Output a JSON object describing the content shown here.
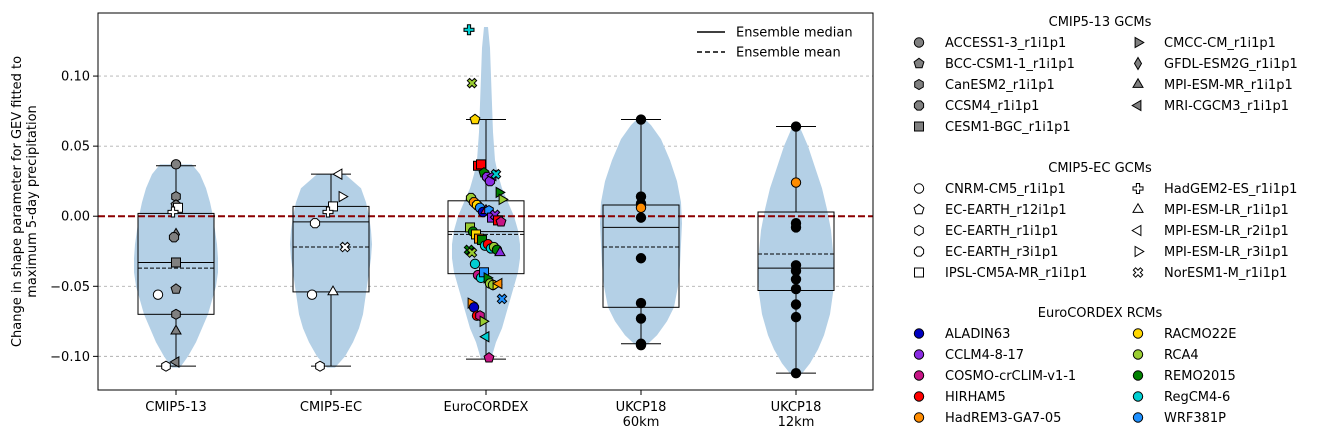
{
  "chart_data": {
    "type": "violin-box-scatter",
    "ylabel": "Change in shape parameter for GEV fitted to\nmaximum 5-day precipitation",
    "ylim": [
      -0.124,
      0.145
    ],
    "yticks": [
      -0.1,
      -0.05,
      0.0,
      0.05,
      0.1
    ],
    "ytick_labels": [
      "−0.10",
      "−0.05",
      "0.00",
      "0.05",
      "0.10"
    ],
    "grid": "horizontal dashed",
    "zero_line": {
      "value": 0,
      "color": "#8b0000"
    },
    "categories": [
      "CMIP5-13",
      "CMIP5-EC",
      "EuroCORDEX",
      "UKCP18\n60km",
      "UKCP18\n12km"
    ],
    "line_legend": [
      {
        "label": "Ensemble median",
        "style": "solid"
      },
      {
        "label": "Ensemble mean",
        "style": "dashed"
      }
    ],
    "groups": [
      {
        "category": "CMIP5-13",
        "whisker": [
          -0.107,
          0.036
        ],
        "box": [
          -0.07,
          0.002
        ],
        "median": -0.033,
        "mean": -0.037,
        "violin": [
          [
            -0.108,
            0.004
          ],
          [
            -0.1,
            0.012
          ],
          [
            -0.09,
            0.02
          ],
          [
            -0.08,
            0.026
          ],
          [
            -0.07,
            0.032
          ],
          [
            -0.06,
            0.036
          ],
          [
            -0.05,
            0.04
          ],
          [
            -0.04,
            0.042
          ],
          [
            -0.03,
            0.042
          ],
          [
            -0.02,
            0.041
          ],
          [
            -0.01,
            0.039
          ],
          [
            0.0,
            0.037
          ],
          [
            0.01,
            0.034
          ],
          [
            0.02,
            0.03
          ],
          [
            0.03,
            0.024
          ],
          [
            0.037,
            0.016
          ]
        ],
        "points": [
          {
            "m": "ACCESS1-3_r1i1p1",
            "y": 0.037
          },
          {
            "m": "CanESM2_r1i1p1",
            "y": 0.014
          },
          {
            "m": "BCC-CSM1-1_r1i1p1",
            "y": 0.008
          },
          {
            "m": "GFDL-ESM2G_r1i1p1",
            "y": -0.013
          },
          {
            "m": "CCSM4_r1i1p1",
            "y": -0.015
          },
          {
            "m": "CESM1-BGC_r1i1p1",
            "y": -0.033
          },
          {
            "m": "BCC-CSM1-1_r1i1p1",
            "y": -0.052
          },
          {
            "m": "MPI-ESM-MR_r1i1p1",
            "y": -0.082
          },
          {
            "m": "CanESM2_r1i1p1",
            "y": -0.07
          },
          {
            "m": "MRI-CGCM3_r1i1p1",
            "y": -0.104
          },
          {
            "m": "CNRM-CM5_r1i1p1",
            "y": -0.056
          },
          {
            "m": "EC-EARTH_r1i1p1",
            "y": -0.107
          },
          {
            "m": "IPSL-CM5A-MR_r1i1p1",
            "y": 0.006
          },
          {
            "m": "HadGEM2-ES_r1i1p1",
            "y": 0.003
          }
        ]
      },
      {
        "category": "CMIP5-EC",
        "whisker": [
          -0.107,
          0.03
        ],
        "box": [
          -0.054,
          0.007
        ],
        "median": -0.004,
        "mean": -0.022,
        "violin": [
          [
            -0.108,
            0.004
          ],
          [
            -0.1,
            0.014
          ],
          [
            -0.09,
            0.022
          ],
          [
            -0.08,
            0.028
          ],
          [
            -0.07,
            0.032
          ],
          [
            -0.06,
            0.034
          ],
          [
            -0.05,
            0.036
          ],
          [
            -0.04,
            0.038
          ],
          [
            -0.03,
            0.04
          ],
          [
            -0.02,
            0.041
          ],
          [
            -0.01,
            0.04
          ],
          [
            0.0,
            0.038
          ],
          [
            0.01,
            0.035
          ],
          [
            0.02,
            0.03
          ],
          [
            0.03,
            0.014
          ]
        ],
        "points": [
          {
            "m": "MPI-ESM-LR_r2i1p1",
            "y": 0.03
          },
          {
            "m": "MPI-ESM-LR_r3i1p1",
            "y": 0.014
          },
          {
            "m": "IPSL-CM5A-MR_r1i1p1",
            "y": 0.007
          },
          {
            "m": "HadGEM2-ES_r1i1p1",
            "y": 0.003
          },
          {
            "m": "EC-EARTH_r3i1p1",
            "y": -0.005
          },
          {
            "m": "NorESM1-M_r1i1p1",
            "y": -0.022
          },
          {
            "m": "CNRM-CM5_r1i1p1",
            "y": -0.056
          },
          {
            "m": "MPI-ESM-LR_r1i1p1",
            "y": -0.054
          },
          {
            "m": "EC-EARTH_r1i1p1",
            "y": -0.107
          }
        ]
      },
      {
        "category": "EuroCORDEX",
        "whisker": [
          -0.102,
          0.069
        ],
        "box": [
          -0.041,
          0.011
        ],
        "median": -0.011,
        "mean": -0.013,
        "violin": [
          [
            -0.102,
            0.005
          ],
          [
            -0.09,
            0.01
          ],
          [
            -0.08,
            0.016
          ],
          [
            -0.06,
            0.024
          ],
          [
            -0.04,
            0.032
          ],
          [
            -0.03,
            0.034
          ],
          [
            -0.02,
            0.034
          ],
          [
            -0.01,
            0.032
          ],
          [
            0.0,
            0.028
          ],
          [
            0.01,
            0.022
          ],
          [
            0.02,
            0.016
          ],
          [
            0.03,
            0.012
          ],
          [
            0.04,
            0.009
          ],
          [
            0.06,
            0.007
          ],
          [
            0.08,
            0.006
          ],
          [
            0.1,
            0.005
          ],
          [
            0.12,
            0.004
          ],
          [
            0.135,
            0.002
          ]
        ],
        "points": [
          {
            "r": "HadGEM2-ES_r1i1p1",
            "c": "RegCM4-6",
            "y": 0.133
          },
          {
            "r": "NorESM1-M_r1i1p1",
            "c": "RCA4",
            "y": 0.095
          },
          {
            "r": "EC-EARTH_r12i1p1",
            "c": "RACMO22E",
            "y": 0.069
          },
          {
            "r": "CESM1-BGC_r1i1p1",
            "c": "HIRHAM5",
            "y": 0.036
          },
          {
            "r": "IPSL-CM5A-MR_r1i1p1",
            "c": "HIRHAM5",
            "y": 0.037
          },
          {
            "r": "BCC-CSM1-1_r1i1p1",
            "c": "REMO2015",
            "y": 0.031
          },
          {
            "r": "CCSM4_r1i1p1",
            "c": "CCLM4-8-17",
            "y": 0.028
          },
          {
            "r": "CCSM4_r1i1p1",
            "c": "CCLM4-8-17",
            "y": 0.025
          },
          {
            "r": "MRI-CGCM3_r1i1p1",
            "c": "CCLM4-8-17",
            "y": 0.029
          },
          {
            "r": "NorESM1-M_r1i1p1",
            "c": "RegCM4-6",
            "y": 0.03
          },
          {
            "r": "MPI-ESM-LR_r3i1p1",
            "c": "REMO2015",
            "y": 0.017
          },
          {
            "r": "MPI-ESM-LR_r3i1p1",
            "c": "RCA4",
            "y": 0.012
          },
          {
            "r": "CCSM4_r1i1p1",
            "c": "RCA4",
            "y": 0.013
          },
          {
            "r": "CCSM4_r1i1p1",
            "c": "HadREM3-GA7-05",
            "y": 0.01
          },
          {
            "r": "CCSM4_r1i1p1",
            "c": "RACMO22E",
            "y": 0.008
          },
          {
            "r": "ACCESS1-3_r1i1p1",
            "c": "WRF381P",
            "y": 0.006
          },
          {
            "r": "ACCESS1-3_r1i1p1",
            "c": "ALADIN63",
            "y": 0.003
          },
          {
            "r": "MPI-ESM-LR_r1i1p1",
            "c": "COSMO-crCLIM-v1-1",
            "y": 0.004
          },
          {
            "r": "EC-EARTH_r1i1p1",
            "c": "WRF381P",
            "y": 0.004
          },
          {
            "r": "CESM1-BGC_r1i1p1",
            "c": "CCLM4-8-17",
            "y": -0.001
          },
          {
            "r": "NorESM1-M_r1i1p1",
            "c": "CCLM4-8-17",
            "y": 0.001
          },
          {
            "r": "CESM1-BGC_r1i1p1",
            "c": "HIRHAM5",
            "y": -0.003
          },
          {
            "r": "BCC-CSM1-1_r1i1p1",
            "c": "COSMO-crCLIM-v1-1",
            "y": -0.004
          },
          {
            "r": "CESM1-BGC_r1i1p1",
            "c": "RCA4",
            "y": -0.008
          },
          {
            "r": "ACCESS1-3_r1i1p1",
            "c": "REMO2015",
            "y": -0.011
          },
          {
            "r": "CESM1-BGC_r1i1p1",
            "c": "RACMO22E",
            "y": -0.013
          },
          {
            "r": "CESM1-BGC_r1i1p1",
            "c": "HadREM3-GA7-05",
            "y": -0.016
          },
          {
            "r": "CESM1-BGC_r1i1p1",
            "c": "REMO2015",
            "y": -0.017
          },
          {
            "r": "ACCESS1-3_r1i1p1",
            "c": "RegCM4-6",
            "y": -0.021
          },
          {
            "r": "ACCESS1-3_r1i1p1",
            "c": "HIRHAM5",
            "y": -0.02
          },
          {
            "r": "ACCESS1-3_r1i1p1",
            "c": "RegCM4-6",
            "y": -0.023
          },
          {
            "r": "ACCESS1-3_r1i1p1",
            "c": "RCA4",
            "y": -0.022
          },
          {
            "r": "ACCESS1-3_r1i1p1",
            "c": "REMO2015",
            "y": -0.024
          },
          {
            "r": "MPI-ESM-LR_r1i1p1",
            "c": "CCLM4-8-17",
            "y": -0.026
          },
          {
            "r": "NorESM1-M_r1i1p1",
            "c": "REMO2015",
            "y": -0.024
          },
          {
            "r": "NorESM1-M_r1i1p1",
            "c": "RCA4",
            "y": -0.026
          },
          {
            "r": "ACCESS1-3_r1i1p1",
            "c": "RegCM4-6",
            "y": -0.034
          },
          {
            "r": "ACCESS1-3_r1i1p1",
            "c": "COSMO-crCLIM-v1-1",
            "y": -0.042
          },
          {
            "r": "ACCESS1-3_r1i1p1",
            "c": "RegCM4-6",
            "y": -0.044
          },
          {
            "r": "CESM1-BGC_r1i1p1",
            "c": "WRF381P",
            "y": -0.04
          },
          {
            "r": "MPI-ESM-LR_r3i1p1",
            "c": "REMO2015",
            "y": -0.044
          },
          {
            "r": "ACCESS1-3_r1i1p1",
            "c": "RCA4",
            "y": -0.048
          },
          {
            "r": "ACCESS1-3_r1i1p1",
            "c": "RCA4",
            "y": -0.049
          },
          {
            "r": "MPI-ESM-LR_r3i1p1",
            "c": "RACMO22E",
            "y": -0.049
          },
          {
            "r": "MRI-CGCM3_r1i1p1",
            "c": "HadREM3-GA7-05",
            "y": -0.048
          },
          {
            "r": "NorESM1-M_r1i1p1",
            "c": "WRF381P",
            "y": -0.059
          },
          {
            "r": "MPI-ESM-LR_r3i1p1",
            "c": "HadREM3-GA7-05",
            "y": -0.062
          },
          {
            "r": "ACCESS1-3_r1i1p1",
            "c": "ALADIN63",
            "y": -0.065
          },
          {
            "r": "ACCESS1-3_r1i1p1",
            "c": "HIRHAM5",
            "y": -0.071
          },
          {
            "r": "EC-EARTH_r1i1p1",
            "c": "COSMO-crCLIM-v1-1",
            "y": -0.071
          },
          {
            "r": "MPI-ESM-LR_r3i1p1",
            "c": "RCA4",
            "y": -0.075
          },
          {
            "r": "MPI-ESM-LR_r2i1p1",
            "c": "RegCM4-6",
            "y": -0.086
          },
          {
            "r": "BCC-CSM1-1_r1i1p1",
            "c": "COSMO-crCLIM-v1-1",
            "y": -0.101
          }
        ]
      },
      {
        "category": "UKCP18 60km",
        "whisker": [
          -0.091,
          0.069
        ],
        "box": [
          -0.065,
          0.008
        ],
        "median": -0.008,
        "mean": -0.022,
        "violin": [
          [
            -0.093,
            0.004
          ],
          [
            -0.085,
            0.016
          ],
          [
            -0.075,
            0.026
          ],
          [
            -0.065,
            0.033
          ],
          [
            -0.05,
            0.037
          ],
          [
            -0.035,
            0.039
          ],
          [
            -0.02,
            0.04
          ],
          [
            -0.005,
            0.041
          ],
          [
            0.01,
            0.04
          ],
          [
            0.025,
            0.036
          ],
          [
            0.04,
            0.029
          ],
          [
            0.055,
            0.02
          ],
          [
            0.065,
            0.01
          ],
          [
            0.07,
            0.003
          ]
        ],
        "points": [
          0.069,
          0.014,
          0.009,
          0.006,
          -0.001,
          -0.03,
          -0.062,
          -0.073,
          -0.091,
          -0.092
        ]
      },
      {
        "category": "UKCP18 12km",
        "whisker": [
          -0.112,
          0.064
        ],
        "box": [
          -0.053,
          0.003
        ],
        "median": -0.037,
        "mean": -0.027,
        "violin": [
          [
            -0.114,
            0.004
          ],
          [
            -0.105,
            0.014
          ],
          [
            -0.095,
            0.022
          ],
          [
            -0.085,
            0.028
          ],
          [
            -0.07,
            0.034
          ],
          [
            -0.055,
            0.037
          ],
          [
            -0.04,
            0.038
          ],
          [
            -0.025,
            0.037
          ],
          [
            -0.01,
            0.035
          ],
          [
            0.005,
            0.031
          ],
          [
            0.02,
            0.026
          ],
          [
            0.035,
            0.019
          ],
          [
            0.05,
            0.012
          ],
          [
            0.06,
            0.006
          ],
          [
            0.066,
            0.002
          ]
        ],
        "points": [
          0.064,
          0.024,
          -0.005,
          -0.008,
          -0.035,
          -0.039,
          -0.045,
          -0.052,
          -0.063,
          -0.072,
          -0.112
        ]
      }
    ],
    "legends": {
      "cmip5_13": {
        "title": "CMIP5-13 GCMs",
        "col1": [
          {
            "label": "ACCESS1-3_r1i1p1",
            "marker": "circle"
          },
          {
            "label": "BCC-CSM1-1_r1i1p1",
            "marker": "pentagon"
          },
          {
            "label": "CanESM2_r1i1p1",
            "marker": "hexagon"
          },
          {
            "label": "CCSM4_r1i1p1",
            "marker": "octagon"
          },
          {
            "label": "CESM1-BGC_r1i1p1",
            "marker": "square"
          }
        ],
        "col2": [
          {
            "label": "CMCC-CM_r1i1p1",
            "marker": "tri-right"
          },
          {
            "label": "GFDL-ESM2G_r1i1p1",
            "marker": "thin-diamond"
          },
          {
            "label": "MPI-ESM-MR_r1i1p1",
            "marker": "tri-up"
          },
          {
            "label": "MRI-CGCM3_r1i1p1",
            "marker": "tri-left"
          }
        ]
      },
      "cmip5_ec": {
        "title": "CMIP5-EC GCMs",
        "col1": [
          {
            "label": "CNRM-CM5_r1i1p1",
            "marker": "circle"
          },
          {
            "label": "EC-EARTH_r12i1p1",
            "marker": "pentagon"
          },
          {
            "label": "EC-EARTH_r1i1p1",
            "marker": "hexagon"
          },
          {
            "label": "EC-EARTH_r3i1p1",
            "marker": "octagon"
          },
          {
            "label": "IPSL-CM5A-MR_r1i1p1",
            "marker": "square"
          }
        ],
        "col2": [
          {
            "label": "HadGEM2-ES_r1i1p1",
            "marker": "plus"
          },
          {
            "label": "MPI-ESM-LR_r1i1p1",
            "marker": "tri-up"
          },
          {
            "label": "MPI-ESM-LR_r2i1p1",
            "marker": "tri-left"
          },
          {
            "label": "MPI-ESM-LR_r3i1p1",
            "marker": "tri-right"
          },
          {
            "label": "NorESM1-M_r1i1p1",
            "marker": "x"
          }
        ]
      },
      "eurocordex": {
        "title": "EuroCORDEX RCMs",
        "col1": [
          {
            "label": "ALADIN63",
            "color": "#0000c0"
          },
          {
            "label": "CCLM4-8-17",
            "color": "#8a2be2"
          },
          {
            "label": "COSMO-crCLIM-v1-1",
            "color": "#c71585"
          },
          {
            "label": "HIRHAM5",
            "color": "#ff0000"
          },
          {
            "label": "HadREM3-GA7-05",
            "color": "#ff8c00"
          }
        ],
        "col2": [
          {
            "label": "RACMO22E",
            "color": "#ffd700"
          },
          {
            "label": "RCA4",
            "color": "#9acd32"
          },
          {
            "label": "REMO2015",
            "color": "#008000"
          },
          {
            "label": "RegCM4-6",
            "color": "#00ced1"
          },
          {
            "label": "WRF381P",
            "color": "#1e90ff"
          }
        ]
      }
    },
    "colors": {
      "violin": "#b4d0e6",
      "cmip5_13_marker": "#808080",
      "cmip5_ec_marker": "#ffffff",
      "ukcp_marker": "#000000",
      "ukcp_highlight": "#ff8c00",
      "zero_line": "#8b0000"
    },
    "gcm_markers": {
      "ACCESS1-3_r1i1p1": "circle",
      "BCC-CSM1-1_r1i1p1": "pentagon",
      "CanESM2_r1i1p1": "hexagon",
      "CCSM4_r1i1p1": "octagon",
      "CESM1-BGC_r1i1p1": "square",
      "CMCC-CM_r1i1p1": "tri-right",
      "GFDL-ESM2G_r1i1p1": "thin-diamond",
      "MPI-ESM-MR_r1i1p1": "tri-up",
      "MRI-CGCM3_r1i1p1": "tri-left",
      "CNRM-CM5_r1i1p1": "circle",
      "EC-EARTH_r12i1p1": "pentagon",
      "EC-EARTH_r1i1p1": "hexagon",
      "EC-EARTH_r3i1p1": "octagon",
      "IPSL-CM5A-MR_r1i1p1": "square",
      "HadGEM2-ES_r1i1p1": "plus",
      "MPI-ESM-LR_r1i1p1": "tri-up",
      "MPI-ESM-LR_r2i1p1": "tri-left",
      "MPI-ESM-LR_r3i1p1": "tri-right",
      "NorESM1-M_r1i1p1": "x"
    }
  }
}
